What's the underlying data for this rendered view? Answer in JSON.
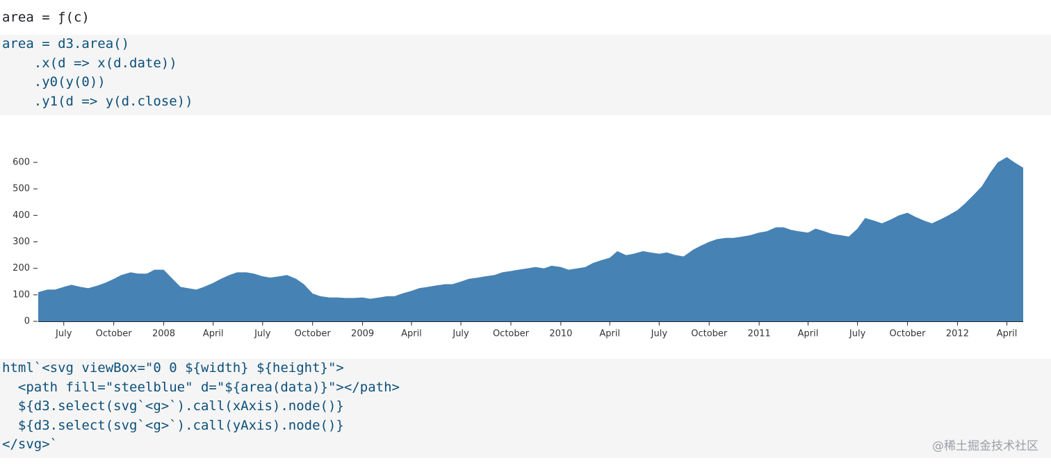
{
  "cells": [
    {
      "code": [
        "area = ƒ(c)"
      ]
    },
    {
      "code": [
        "area = d3.area()",
        "    .x(d => x(d.date))",
        "    .y0(y(0))",
        "    .y1(d => y(d.close))"
      ]
    },
    {
      "code": [
        "html`<svg viewBox=\"0 0 ${width} ${height}\">",
        "  <path fill=\"steelblue\" d=\"${area(data)}\"></path>",
        "  ${d3.select(svg`<g>`).call(xAxis).node()}",
        "  ${d3.select(svg`<g>`).call(yAxis).node()}",
        "</svg>`"
      ]
    }
  ],
  "watermark": "@稀土掘金技术社区",
  "chart_data": {
    "type": "area",
    "color": "steelblue",
    "x": [
      "2007-05-15",
      "2007-06-01",
      "2007-06-15",
      "2007-07-01",
      "2007-07-15",
      "2007-08-01",
      "2007-08-15",
      "2007-09-01",
      "2007-09-15",
      "2007-10-01",
      "2007-10-15",
      "2007-11-01",
      "2007-11-15",
      "2007-12-01",
      "2007-12-15",
      "2008-01-01",
      "2008-01-15",
      "2008-02-01",
      "2008-02-15",
      "2008-03-01",
      "2008-03-15",
      "2008-04-01",
      "2008-04-15",
      "2008-05-01",
      "2008-05-15",
      "2008-06-01",
      "2008-06-15",
      "2008-07-01",
      "2008-07-15",
      "2008-08-01",
      "2008-08-15",
      "2008-09-01",
      "2008-09-15",
      "2008-10-01",
      "2008-10-15",
      "2008-11-01",
      "2008-11-15",
      "2008-12-01",
      "2008-12-15",
      "2009-01-01",
      "2009-01-15",
      "2009-02-01",
      "2009-02-15",
      "2009-03-01",
      "2009-03-15",
      "2009-04-01",
      "2009-04-15",
      "2009-05-01",
      "2009-05-15",
      "2009-06-01",
      "2009-06-15",
      "2009-07-01",
      "2009-07-15",
      "2009-08-01",
      "2009-08-15",
      "2009-09-01",
      "2009-09-15",
      "2009-10-01",
      "2009-10-15",
      "2009-11-01",
      "2009-11-15",
      "2009-12-01",
      "2009-12-15",
      "2010-01-01",
      "2010-01-15",
      "2010-02-01",
      "2010-02-15",
      "2010-03-01",
      "2010-03-15",
      "2010-04-01",
      "2010-04-15",
      "2010-05-01",
      "2010-05-15",
      "2010-06-01",
      "2010-06-15",
      "2010-07-01",
      "2010-07-15",
      "2010-08-01",
      "2010-08-15",
      "2010-09-01",
      "2010-09-15",
      "2010-10-01",
      "2010-10-15",
      "2010-11-01",
      "2010-11-15",
      "2010-12-01",
      "2010-12-15",
      "2011-01-01",
      "2011-01-15",
      "2011-02-01",
      "2011-02-15",
      "2011-03-01",
      "2011-03-15",
      "2011-04-01",
      "2011-04-15",
      "2011-05-01",
      "2011-05-15",
      "2011-06-01",
      "2011-06-15",
      "2011-07-01",
      "2011-07-15",
      "2011-08-01",
      "2011-08-15",
      "2011-09-01",
      "2011-09-15",
      "2011-10-01",
      "2011-10-15",
      "2011-11-01",
      "2011-11-15",
      "2011-12-01",
      "2011-12-15",
      "2012-01-01",
      "2012-01-15",
      "2012-02-01",
      "2012-02-15",
      "2012-03-01",
      "2012-03-15",
      "2012-04-01",
      "2012-04-15",
      "2012-05-01"
    ],
    "values": [
      110,
      120,
      120,
      130,
      138,
      130,
      125,
      135,
      145,
      160,
      175,
      185,
      180,
      180,
      195,
      195,
      165,
      130,
      125,
      120,
      130,
      145,
      160,
      175,
      185,
      185,
      180,
      170,
      165,
      170,
      175,
      160,
      140,
      105,
      95,
      90,
      90,
      88,
      88,
      90,
      85,
      90,
      95,
      95,
      105,
      115,
      125,
      130,
      135,
      140,
      140,
      150,
      160,
      165,
      170,
      175,
      185,
      190,
      195,
      200,
      205,
      200,
      210,
      205,
      195,
      200,
      205,
      220,
      230,
      240,
      265,
      250,
      255,
      265,
      260,
      255,
      260,
      250,
      245,
      270,
      285,
      300,
      310,
      315,
      315,
      320,
      325,
      335,
      340,
      355,
      355,
      345,
      340,
      335,
      350,
      340,
      330,
      325,
      320,
      350,
      390,
      380,
      370,
      385,
      400,
      410,
      395,
      380,
      370,
      385,
      400,
      420,
      445,
      480,
      510,
      560,
      600,
      620,
      600,
      580
    ],
    "xlim": [
      "2007-05-15",
      "2012-05-01"
    ],
    "xticks": [
      {
        "value": "2007-07-01",
        "label": "July"
      },
      {
        "value": "2007-10-01",
        "label": "October"
      },
      {
        "value": "2008-01-01",
        "label": "2008"
      },
      {
        "value": "2008-04-01",
        "label": "April"
      },
      {
        "value": "2008-07-01",
        "label": "July"
      },
      {
        "value": "2008-10-01",
        "label": "October"
      },
      {
        "value": "2009-01-01",
        "label": "2009"
      },
      {
        "value": "2009-04-01",
        "label": "April"
      },
      {
        "value": "2009-07-01",
        "label": "July"
      },
      {
        "value": "2009-10-01",
        "label": "October"
      },
      {
        "value": "2010-01-01",
        "label": "2010"
      },
      {
        "value": "2010-04-01",
        "label": "April"
      },
      {
        "value": "2010-07-01",
        "label": "July"
      },
      {
        "value": "2010-10-01",
        "label": "October"
      },
      {
        "value": "2011-01-01",
        "label": "2011"
      },
      {
        "value": "2011-04-01",
        "label": "April"
      },
      {
        "value": "2011-07-01",
        "label": "July"
      },
      {
        "value": "2011-10-01",
        "label": "October"
      },
      {
        "value": "2012-01-01",
        "label": "2012"
      },
      {
        "value": "2012-04-01",
        "label": "April"
      }
    ],
    "ylim": [
      0,
      640
    ],
    "yticks": [
      0,
      100,
      200,
      300,
      400,
      500,
      600
    ]
  }
}
